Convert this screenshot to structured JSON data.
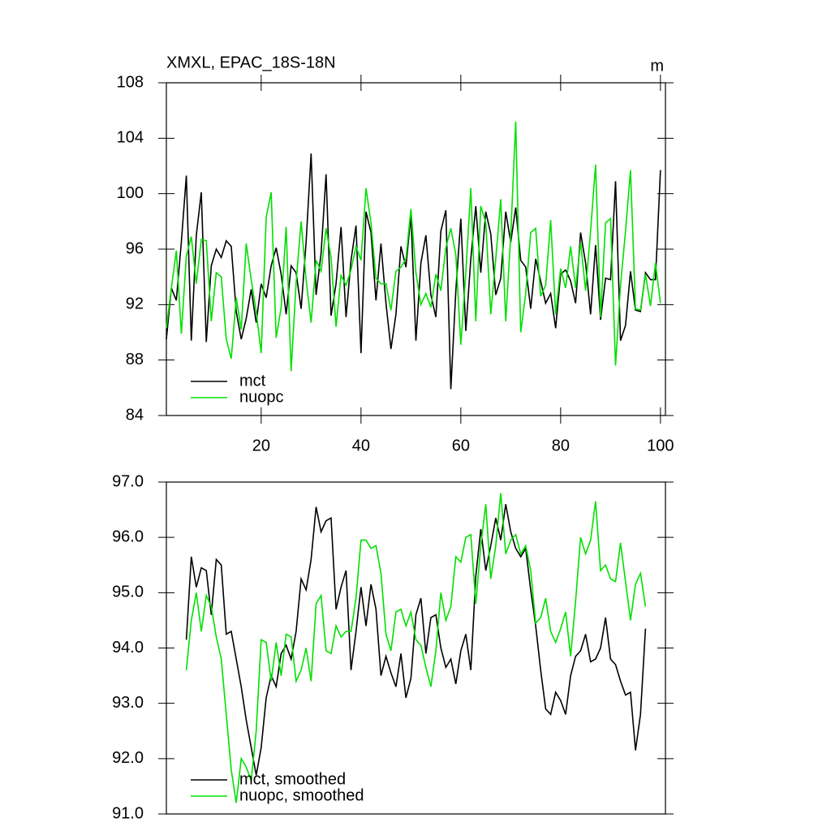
{
  "chart_data": [
    {
      "type": "line",
      "title": "XMXL, EPAC_18S-18N",
      "units": "m",
      "x": [
        1,
        2,
        3,
        4,
        5,
        6,
        7,
        8,
        9,
        10,
        11,
        12,
        13,
        14,
        15,
        16,
        17,
        18,
        19,
        20,
        21,
        22,
        23,
        24,
        25,
        26,
        27,
        28,
        29,
        30,
        31,
        32,
        33,
        34,
        35,
        36,
        37,
        38,
        39,
        40,
        41,
        42,
        43,
        44,
        45,
        46,
        47,
        48,
        49,
        50,
        51,
        52,
        53,
        54,
        55,
        56,
        57,
        58,
        59,
        60,
        61,
        62,
        63,
        64,
        65,
        66,
        67,
        68,
        69,
        70,
        71,
        72,
        73,
        74,
        75,
        76,
        77,
        78,
        79,
        80,
        81,
        82,
        83,
        84,
        85,
        86,
        87,
        88,
        89,
        90,
        91,
        92,
        93,
        94,
        95,
        96,
        97,
        98,
        99,
        100
      ],
      "series": [
        {
          "name": "mct",
          "color": "#000000",
          "values": [
            89.5,
            93.2,
            92.3,
            96.5,
            101.3,
            89.4,
            97,
            100.1,
            89.3,
            94.8,
            96,
            95.4,
            96.6,
            96.2,
            91.5,
            89.5,
            91,
            93.1,
            90.7,
            93.5,
            92.5,
            94.8,
            96.1,
            94.2,
            91.3,
            94.8,
            94.3,
            91.7,
            96.5,
            102.9,
            92.7,
            95.7,
            101.4,
            91.2,
            93.5,
            97.6,
            91.1,
            95.2,
            97.7,
            88.5,
            98.7,
            97.2,
            92.3,
            96.4,
            92.1,
            88.8,
            91.3,
            96.2,
            94.7,
            98.5,
            89.4,
            95,
            97,
            92.7,
            91.1,
            97.3,
            98.8,
            85.9,
            93,
            98.2,
            90.1,
            95.3,
            99.1,
            94.3,
            98.7,
            97.1,
            92.7,
            93.9,
            98.7,
            96.5,
            99,
            95.2,
            94.7,
            91.7,
            95.3,
            93.7,
            92.1,
            92.8,
            90.3,
            94.2,
            94.5,
            93.7,
            92.1,
            97.2,
            95,
            91.3,
            96.3,
            90.9,
            93.9,
            93.8,
            100.9,
            89.4,
            90.5,
            94.4,
            91.6,
            91.5,
            94.3,
            93.8,
            93.8,
            101.7
          ]
        },
        {
          "name": "nuopc",
          "color": "#00e000",
          "values": [
            90.3,
            93.2,
            95.9,
            89.9,
            95.5,
            96.9,
            93.5,
            96.7,
            96.6,
            90.8,
            94.3,
            94,
            89.5,
            88.1,
            92.5,
            90.2,
            96.4,
            93.8,
            91.5,
            88.5,
            98.3,
            100.1,
            89.6,
            91.8,
            97.6,
            87.2,
            93.6,
            98,
            93.8,
            90.7,
            95.2,
            94.4,
            97.5,
            95.4,
            90.4,
            94.1,
            93.4,
            94.5,
            96.2,
            95.2,
            100.4,
            97.9,
            93.9,
            93.5,
            93.5,
            91.6,
            94.4,
            94.7,
            95.3,
            98.9,
            94.3,
            92,
            92.8,
            91.8,
            94.2,
            93,
            96.1,
            97.5,
            95.6,
            89.1,
            94.3,
            100.4,
            90.8,
            99.1,
            97.9,
            91.3,
            95.3,
            99.6,
            90.8,
            97,
            105.2,
            90,
            92.8,
            97.2,
            97.5,
            92.6,
            93.4,
            98.1,
            91.3,
            94.6,
            93.2,
            96.2,
            93.2,
            96.5,
            93,
            97.3,
            102.1,
            91.1,
            97.9,
            98.2,
            87.6,
            93.4,
            97.3,
            101.7,
            91.7,
            91.6,
            94.2,
            91.9,
            95,
            92.1
          ]
        }
      ],
      "xlim": [
        1,
        101
      ],
      "xticks": [
        20,
        40,
        60,
        80,
        100
      ],
      "ylim": [
        84,
        108
      ],
      "yticks": [
        84,
        88,
        92,
        96,
        100,
        104,
        108
      ],
      "legend": "lower left"
    },
    {
      "type": "line",
      "x": [
        5,
        6,
        7,
        8,
        9,
        10,
        11,
        12,
        13,
        14,
        15,
        16,
        17,
        18,
        19,
        20,
        21,
        22,
        23,
        24,
        25,
        26,
        27,
        28,
        29,
        30,
        31,
        32,
        33,
        34,
        35,
        36,
        37,
        38,
        39,
        40,
        41,
        42,
        43,
        44,
        45,
        46,
        47,
        48,
        49,
        50,
        51,
        52,
        53,
        54,
        55,
        56,
        57,
        58,
        59,
        60,
        61,
        62,
        63,
        64,
        65,
        66,
        67,
        68,
        69,
        70,
        71,
        72,
        73,
        74,
        75,
        76,
        77,
        78,
        79,
        80,
        81,
        82,
        83,
        84,
        85,
        86,
        87,
        88,
        89,
        90,
        91,
        92,
        93,
        94,
        95,
        96,
        97
      ],
      "series": [
        {
          "name": "mct, smoothed",
          "color": "#000000",
          "values": [
            94.15,
            95.65,
            95.1,
            95.45,
            95.4,
            94.6,
            95.6,
            95.5,
            94.25,
            94.3,
            93.8,
            93.3,
            92.7,
            92.2,
            91.7,
            92.2,
            93.1,
            93.5,
            93.3,
            93.9,
            94.05,
            93.8,
            94.3,
            95.25,
            95.05,
            95.6,
            96.55,
            96.1,
            96.3,
            96.35,
            94.7,
            95.1,
            95.4,
            93.6,
            94.3,
            95.1,
            94.4,
            95.15,
            94.7,
            93.5,
            93.85,
            93.55,
            93.3,
            93.9,
            93.1,
            93.45,
            94.6,
            94.9,
            93.9,
            94.55,
            94.6,
            94.0,
            93.65,
            93.8,
            93.35,
            93.95,
            94.25,
            93.6,
            95.3,
            96.15,
            95.4,
            95.85,
            96.35,
            95.95,
            96.6,
            96.1,
            95.8,
            95.65,
            95.8,
            95.05,
            94.4,
            93.6,
            92.9,
            92.8,
            93.2,
            93.05,
            92.8,
            93.5,
            93.85,
            93.95,
            94.25,
            93.75,
            93.8,
            94.0,
            94.55,
            93.8,
            93.7,
            93.4,
            93.15,
            93.2,
            92.15,
            92.8,
            94.35
          ]
        },
        {
          "name": "nuopc, smoothed",
          "color": "#00e000",
          "values": [
            93.6,
            94.5,
            95,
            94.3,
            94.95,
            94.75,
            94.2,
            93.8,
            92.8,
            91.8,
            91.2,
            92,
            91.85,
            91.6,
            92.5,
            94.15,
            94.1,
            93.4,
            94.1,
            93.5,
            94.25,
            94.2,
            93.4,
            93.6,
            94.0,
            93.4,
            94.8,
            94.95,
            93.95,
            93.9,
            94.4,
            94.2,
            94.3,
            94.3,
            94.9,
            95.95,
            95.95,
            95.8,
            95.85,
            95.35,
            94.25,
            93.95,
            94.65,
            94.7,
            94.4,
            94.65,
            94.15,
            94.05,
            93.65,
            93.3,
            93.95,
            95.0,
            94.5,
            94.75,
            95.65,
            95.55,
            96.0,
            96.05,
            94.8,
            95.85,
            96.6,
            95.25,
            95.85,
            96.8,
            95.7,
            95.95,
            96.05,
            95.7,
            95.85,
            95.4,
            94.45,
            94.55,
            94.9,
            94.3,
            94.1,
            94.35,
            94.65,
            93.85,
            94.85,
            96.0,
            95.7,
            95.95,
            96.65,
            95.4,
            95.5,
            95.25,
            95.2,
            95.9,
            95.2,
            94.5,
            95.15,
            95.35,
            94.75
          ]
        }
      ],
      "xlim": [
        1,
        101
      ],
      "ylim": [
        91,
        97
      ],
      "yticks": [
        {
          "value": 91,
          "label": "91.0"
        },
        {
          "value": 92,
          "label": "92.0"
        },
        {
          "value": 93,
          "label": "93.0"
        },
        {
          "value": 94,
          "label": "94.0"
        },
        {
          "value": 95,
          "label": "95.0"
        },
        {
          "value": 96,
          "label": "96.0"
        },
        {
          "value": 97,
          "label": "97.0"
        }
      ],
      "legend": "lower left"
    }
  ]
}
